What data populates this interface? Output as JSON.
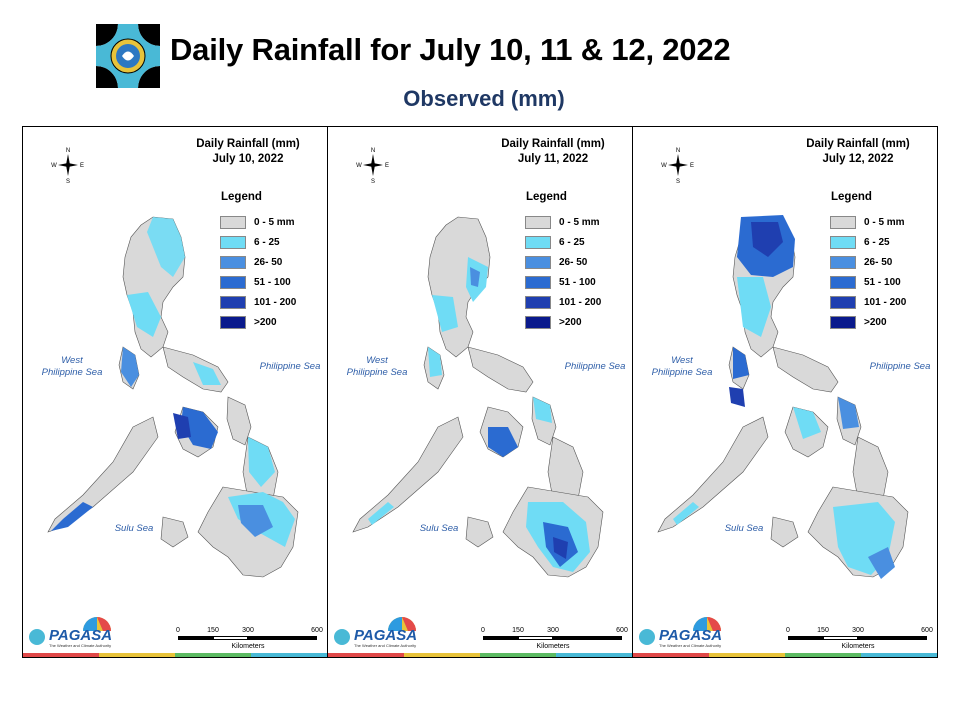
{
  "header": {
    "title": "Daily Rainfall for July 10, 11 & 12, 2022",
    "subtitle": "Observed (mm)"
  },
  "legend": {
    "title": "Legend",
    "items": [
      {
        "label": "0 - 5 mm",
        "color": "#d9d9d9"
      },
      {
        "label": "6 - 25",
        "color": "#6fdcf5"
      },
      {
        "label": "26- 50",
        "color": "#4a8fe0"
      },
      {
        "label": "51 - 100",
        "color": "#2b6bd1"
      },
      {
        "label": "101 - 200",
        "color": "#1f3fb0"
      },
      {
        "label": ">200",
        "color": "#0a1a8c"
      }
    ]
  },
  "panels": [
    {
      "title_line1": "Daily Rainfall (mm)",
      "title_line2": "July 10, 2022"
    },
    {
      "title_line1": "Daily Rainfall (mm)",
      "title_line2": "July 11, 2022"
    },
    {
      "title_line1": "Daily Rainfall (mm)",
      "title_line2": "July 12, 2022"
    }
  ],
  "seas": {
    "west": "West\nPhilippine Sea",
    "east": "Philippine Sea",
    "sulu": "Sulu Sea"
  },
  "scale": {
    "ticks": [
      "0",
      "150",
      "300",
      "600"
    ],
    "units": "Kilometers"
  },
  "brand": {
    "name": "PAGASA",
    "tagline": "The Weather and Climate Authority"
  },
  "compass": {
    "n": "N",
    "s": "S",
    "e": "E",
    "w": "W"
  }
}
